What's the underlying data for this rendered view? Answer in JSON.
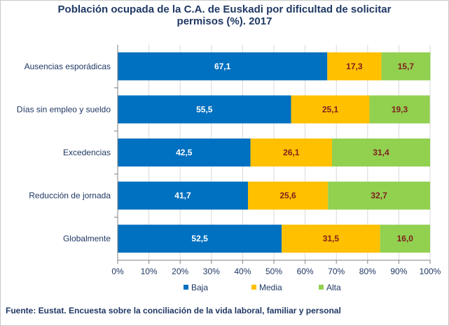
{
  "chart_data": {
    "type": "bar",
    "orientation": "horizontal",
    "stacked": true,
    "title": "Población ocupada de la C.A. de Euskadi por dificultad de solicitar\npermisos (%). 2017",
    "categories": [
      "Ausencias esporádicas",
      "Días sin empleo y sueldo",
      "Excedencias",
      "Reducción de jornada",
      "Globalmente"
    ],
    "series": [
      {
        "name": "Baja",
        "color": "#0070c0",
        "label_color": "#ffffff",
        "values": [
          67.1,
          55.5,
          42.5,
          41.7,
          52.5
        ],
        "labels": [
          "67,1",
          "55,5",
          "42,5",
          "41,7",
          "52,5"
        ]
      },
      {
        "name": "Media",
        "color": "#ffc000",
        "label_color": "#7f1f1f",
        "values": [
          17.3,
          25.1,
          26.1,
          25.6,
          31.5
        ],
        "labels": [
          "17,3",
          "25,1",
          "26,1",
          "25,6",
          "31,5"
        ]
      },
      {
        "name": "Alta",
        "color": "#92d050",
        "label_color": "#7f1f1f",
        "values": [
          15.7,
          19.3,
          31.4,
          32.7,
          16.0
        ],
        "labels": [
          "15,7",
          "19,3",
          "31,4",
          "32,7",
          "16,0"
        ]
      }
    ],
    "xlim": [
      0,
      100
    ],
    "xticks": [
      0,
      10,
      20,
      30,
      40,
      50,
      60,
      70,
      80,
      90,
      100
    ],
    "xtick_labels": [
      "0%",
      "10%",
      "20%",
      "30%",
      "40%",
      "50%",
      "60%",
      "70%",
      "80%",
      "90%",
      "100%"
    ],
    "grid": true,
    "legend": "bottom",
    "xlabel": "",
    "ylabel": "",
    "gridline_color": "#d9d9d9",
    "axis_color": "#808080"
  },
  "source": "Fuente: Eustat. Encuesta sobre la conciliación de la vida laboral, familiar y personal"
}
